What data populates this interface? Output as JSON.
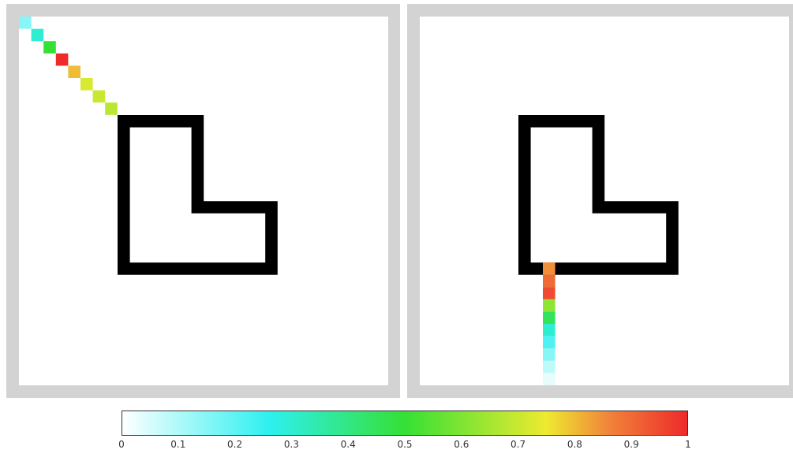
{
  "colors": {
    "frame": "#d3d3d3",
    "background": "#ffffff",
    "wall": "#000000",
    "colorbar_stops": [
      "#ffffff",
      "#2ef0f0",
      "#35e035",
      "#eeea30",
      "#f0853a",
      "#ee2a2a"
    ]
  },
  "colorbar": {
    "min": 0,
    "max": 1,
    "tick_labels": [
      "0",
      "0.1",
      "0.2",
      "0.3",
      "0.4",
      "0.5",
      "0.6",
      "0.7",
      "0.8",
      "0.9",
      "1"
    ]
  },
  "panels": [
    {
      "name": "left",
      "shape": "L-shaped obstacle",
      "trail_direction": "diagonal from top-left corner toward obstacle corner",
      "trail": [
        {
          "step": 0,
          "value": 0.15
        },
        {
          "step": 1,
          "value": 0.3
        },
        {
          "step": 2,
          "value": 0.5
        },
        {
          "step": 3,
          "value": 1.0
        },
        {
          "step": 4,
          "value": 0.8
        },
        {
          "step": 5,
          "value": 0.72
        },
        {
          "step": 6,
          "value": 0.7
        },
        {
          "step": 7,
          "value": 0.68
        }
      ]
    },
    {
      "name": "right",
      "shape": "L-shaped obstacle",
      "trail_direction": "vertical from bottom edge up to obstacle",
      "trail": [
        {
          "step": 0,
          "value": 0.03
        },
        {
          "step": 1,
          "value": 0.08
        },
        {
          "step": 2,
          "value": 0.15
        },
        {
          "step": 3,
          "value": 0.22
        },
        {
          "step": 4,
          "value": 0.3
        },
        {
          "step": 5,
          "value": 0.45
        },
        {
          "step": 6,
          "value": 0.62
        },
        {
          "step": 7,
          "value": 0.95
        },
        {
          "step": 8,
          "value": 0.9
        },
        {
          "step": 9,
          "value": 0.85
        }
      ]
    }
  ]
}
